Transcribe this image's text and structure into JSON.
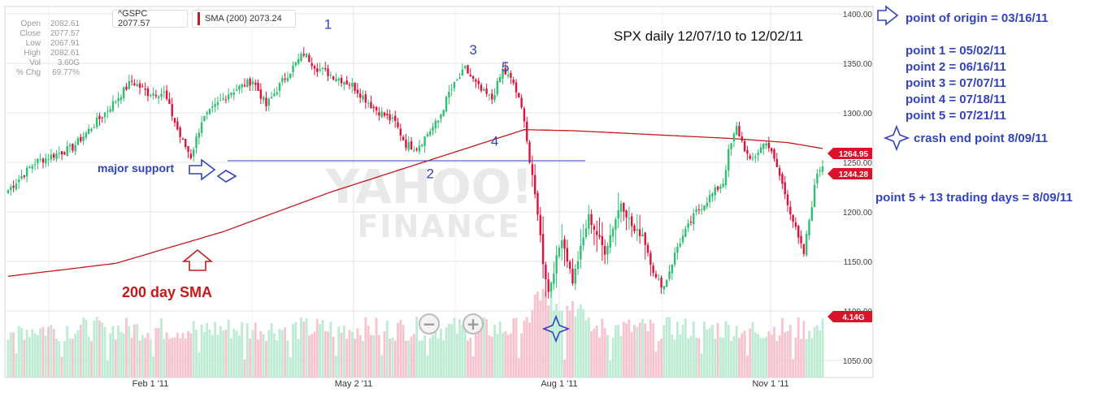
{
  "ohlc_panel": {
    "rows": [
      {
        "label": "Open",
        "value": "2082.61"
      },
      {
        "label": "Close",
        "value": "2077.57"
      },
      {
        "label": "Low",
        "value": "2067.91"
      },
      {
        "label": "High",
        "value": "2082.61"
      },
      {
        "label": "Vol",
        "value": "3.60G"
      },
      {
        "label": "% Chg",
        "value": "69.77%"
      }
    ]
  },
  "legend": {
    "gspc": "^GSPC 2077.57",
    "sma": "SMA (200) 2073.24"
  },
  "annotations": {
    "title": "SPX daily 12/07/10 to 12/02/11",
    "origin": "point of origin = 03/16/11",
    "p1": "point 1 = 05/02/11",
    "p2": "point 2 = 06/16/11",
    "p3": "point 3 = 07/07/11",
    "p4": "point 4 = 07/18/11",
    "p5": "point 5 = 07/21/11",
    "crash": "crash  end point  8/09/11",
    "trading_days": "point 5 + 13 trading days = 8/09/11",
    "major_support": "major support",
    "sma_label": "200 day SMA",
    "wave_1": "1",
    "wave_2": "2",
    "wave_3": "3",
    "wave_4": "4",
    "wave_5": "5"
  },
  "badges": {
    "sma": "1264.95",
    "price": "1244.28",
    "volume": "4.14G"
  },
  "watermark": {
    "line1": "YAHOO!",
    "line2": "FINANCE"
  },
  "zoom": {
    "minus": "−",
    "plus": "+"
  },
  "colors": {
    "up": "#2fbf71",
    "down": "#e0103a",
    "vol_up": "#bdebd3",
    "vol_down": "#f6c3cf",
    "sma": "#c41a1a",
    "annotation": "#3344bb",
    "grid": "#e6e6e6"
  },
  "chart_data": {
    "type": "candlestick",
    "x_ticks": [
      "Feb 1 '11",
      "May 2 '11",
      "Aug 1 '11",
      "Nov 1 '11"
    ],
    "y_ticks": [
      "1050.00",
      "1100.00",
      "1150.00",
      "1200.00",
      "1250.00",
      "1300.00",
      "1350.00",
      "1400.00"
    ],
    "ylim": [
      1040,
      1410
    ],
    "support_level": 1250,
    "price_anchors": [
      [
        0,
        1222
      ],
      [
        10,
        1250
      ],
      [
        24,
        1265
      ],
      [
        36,
        1300
      ],
      [
        46,
        1332
      ],
      [
        52,
        1320
      ],
      [
        58,
        1320
      ],
      [
        64,
        1276
      ],
      [
        68,
        1256
      ],
      [
        72,
        1292
      ],
      [
        82,
        1320
      ],
      [
        91,
        1333
      ],
      [
        96,
        1307
      ],
      [
        102,
        1332
      ],
      [
        110,
        1360
      ],
      [
        115,
        1345
      ],
      [
        122,
        1336
      ],
      [
        128,
        1328
      ],
      [
        136,
        1305
      ],
      [
        144,
        1290
      ],
      [
        148,
        1268
      ],
      [
        152,
        1265
      ],
      [
        156,
        1279
      ],
      [
        160,
        1292
      ],
      [
        164,
        1320
      ],
      [
        170,
        1344
      ],
      [
        176,
        1322
      ],
      [
        180,
        1314
      ],
      [
        184,
        1343
      ],
      [
        188,
        1330
      ],
      [
        192,
        1295
      ],
      [
        194,
        1250
      ],
      [
        197,
        1200
      ],
      [
        199,
        1150
      ],
      [
        201,
        1119
      ],
      [
        206,
        1175
      ],
      [
        210,
        1130
      ],
      [
        216,
        1195
      ],
      [
        222,
        1160
      ],
      [
        228,
        1210
      ],
      [
        233,
        1180
      ],
      [
        236,
        1178
      ],
      [
        241,
        1132
      ],
      [
        244,
        1125
      ],
      [
        249,
        1165
      ],
      [
        256,
        1200
      ],
      [
        262,
        1218
      ],
      [
        266,
        1230
      ],
      [
        268,
        1260
      ],
      [
        271,
        1285
      ],
      [
        276,
        1250
      ],
      [
        282,
        1272
      ],
      [
        286,
        1245
      ],
      [
        290,
        1210
      ],
      [
        294,
        1172
      ],
      [
        296,
        1158
      ],
      [
        298,
        1192
      ],
      [
        301,
        1240
      ],
      [
        303,
        1248
      ]
    ],
    "sma_anchors": [
      [
        0,
        1135
      ],
      [
        40,
        1148
      ],
      [
        80,
        1180
      ],
      [
        120,
        1220
      ],
      [
        160,
        1255
      ],
      [
        192,
        1283
      ],
      [
        210,
        1282
      ],
      [
        240,
        1278
      ],
      [
        270,
        1274
      ],
      [
        290,
        1270
      ],
      [
        303,
        1264
      ]
    ],
    "point_labels": [
      {
        "label": "1",
        "x": 119,
        "y": 1385
      },
      {
        "label": "2",
        "x": 157,
        "y": 1234
      },
      {
        "label": "3",
        "x": 173,
        "y": 1359
      },
      {
        "label": "4",
        "x": 181,
        "y": 1267
      },
      {
        "label": "5",
        "x": 185,
        "y": 1342
      }
    ]
  }
}
